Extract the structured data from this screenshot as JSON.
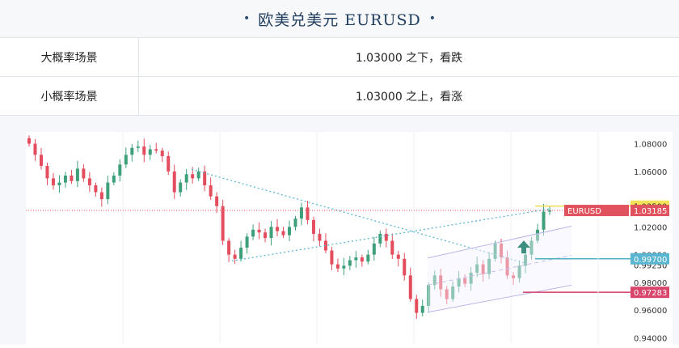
{
  "header": {
    "title": "欧美兑美元 EURUSD",
    "dot": "•"
  },
  "scenarios": [
    {
      "label": "大概率场景",
      "value": "1.03000 之下，看跌"
    },
    {
      "label": "小概率场景",
      "value": "1.03000 之上，看涨"
    }
  ],
  "chart_data": {
    "type": "candlestick",
    "symbol": "EURUSD",
    "current_price": 1.03185,
    "ylim": [
      0.935,
      1.0885
    ],
    "y_ticks": [
      {
        "value": 1.08,
        "label": "1.08000"
      },
      {
        "value": 1.06,
        "label": "1.06000"
      },
      {
        "value": 1.02,
        "label": "1.02000"
      },
      {
        "value": 1.0,
        "label": "1.00000"
      },
      {
        "value": 0.9925,
        "label": "0.99250"
      },
      {
        "value": 0.98,
        "label": "0.98000"
      },
      {
        "value": 0.96,
        "label": "0.96000"
      },
      {
        "value": 0.94,
        "label": "0.94000"
      }
    ],
    "price_tags": [
      {
        "label": "1.03500",
        "value": 1.035,
        "color": "#f6e15a",
        "text_color": "#333333"
      },
      {
        "label": "EURUSD",
        "value": 1.03185,
        "color": "#e0525e",
        "text_color": "#ffffff",
        "with_price": "1.03185"
      },
      {
        "label": "0.99700",
        "value": 0.997,
        "color": "#5ab6d0",
        "text_color": "#ffffff"
      },
      {
        "label": "0.97283",
        "value": 0.97283,
        "color": "#d9466b",
        "text_color": "#ffffff"
      }
    ],
    "levels": [
      {
        "value": 1.035,
        "color": "#f2de4c"
      },
      {
        "value": 0.997,
        "color": "#4fb0c8"
      },
      {
        "value": 0.97283,
        "color": "#d23f66"
      }
    ],
    "close_path": [
      1.08,
      1.072,
      1.064,
      1.055,
      1.05,
      1.052,
      1.057,
      1.053,
      1.062,
      1.055,
      1.05,
      1.045,
      1.04,
      1.052,
      1.057,
      1.065,
      1.072,
      1.077,
      1.078,
      1.072,
      1.076,
      1.075,
      1.071,
      1.06,
      1.045,
      1.052,
      1.058,
      1.055,
      1.06,
      1.05,
      1.042,
      1.035,
      1.01,
      1.0,
      0.997,
      1.005,
      1.013,
      1.018,
      1.016,
      1.012,
      1.02,
      1.017,
      1.014,
      1.02,
      1.026,
      1.034,
      1.025,
      1.015,
      1.01,
      1.003,
      0.993,
      0.99,
      0.992,
      0.996,
      0.998,
      0.995,
      1.0,
      1.008,
      1.015,
      1.01,
      1.0,
      0.997,
      0.985,
      0.968,
      0.958,
      0.963,
      0.978,
      0.985,
      0.975,
      0.968,
      0.977,
      0.983,
      0.979,
      0.987,
      0.993,
      0.986,
      0.997,
      1.008,
      0.998,
      0.985,
      0.983,
      0.992,
      1.0,
      1.01,
      1.018,
      1.031,
      1.032
    ]
  }
}
